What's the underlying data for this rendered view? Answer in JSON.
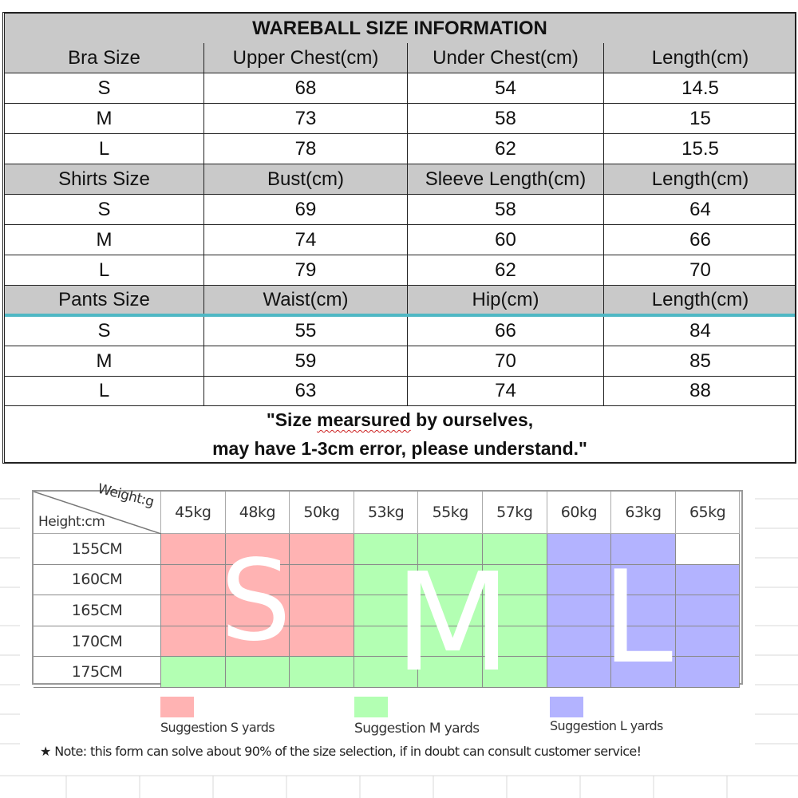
{
  "size_info": {
    "title": "WAREBALL SIZE INFORMATION",
    "sections": [
      {
        "name": "bra",
        "headers": [
          "Bra Size",
          "Upper Chest(cm)",
          "Under Chest(cm)",
          "Length(cm)"
        ],
        "rows": [
          [
            "S",
            "68",
            "54",
            "14.5"
          ],
          [
            "M",
            "73",
            "58",
            "15"
          ],
          [
            "L",
            "78",
            "62",
            "15.5"
          ]
        ]
      },
      {
        "name": "shirts",
        "headers": [
          "Shirts Size",
          "Bust(cm)",
          "Sleeve Length(cm)",
          "Length(cm)"
        ],
        "rows": [
          [
            "S",
            "69",
            "58",
            "64"
          ],
          [
            "M",
            "74",
            "60",
            "66"
          ],
          [
            "L",
            "79",
            "62",
            "70"
          ]
        ]
      },
      {
        "name": "pants",
        "headers": [
          "Pants Size",
          "Waist(cm)",
          "Hip(cm)",
          "Length(cm)"
        ],
        "rows": [
          [
            "S",
            "55",
            "66",
            "84"
          ],
          [
            "M",
            "59",
            "70",
            "85"
          ],
          [
            "L",
            "63",
            "74",
            "88"
          ]
        ]
      }
    ],
    "note_line1_pre": "\"Size ",
    "note_line1_misspelled": "mearsured",
    "note_line1_post": " by ourselves,",
    "note_line2": "may have 1-3cm error, please understand.\""
  },
  "weight_height_chart": {
    "corner_weight_label": "Weight:g",
    "corner_height_label": "Height:cm",
    "weights": [
      "45kg",
      "48kg",
      "50kg",
      "53kg",
      "55kg",
      "57kg",
      "60kg",
      "63kg",
      "65kg"
    ],
    "heights": [
      "155CM",
      "160CM",
      "165CM",
      "170CM",
      "175CM"
    ],
    "grid": [
      [
        "S",
        "S",
        "S",
        "M",
        "M",
        "M",
        "L",
        "L",
        ""
      ],
      [
        "S",
        "S",
        "S",
        "M",
        "M",
        "M",
        "L",
        "L",
        "L"
      ],
      [
        "S",
        "S",
        "S",
        "M",
        "M",
        "M",
        "L",
        "L",
        "L"
      ],
      [
        "S",
        "S",
        "S",
        "M",
        "M",
        "M",
        "L",
        "L",
        "L"
      ],
      [
        "M",
        "M",
        "M",
        "M",
        "M",
        "M",
        "L",
        "L",
        "L"
      ]
    ],
    "big_letters": {
      "S": "S",
      "M": "M",
      "L": "L"
    },
    "colors": {
      "S": "#ffb3b3",
      "M": "#b3ffb3",
      "L": "#b3b3ff",
      "empty": "#ffffff"
    },
    "legend": [
      {
        "key": "S",
        "label": "Suggestion S yards"
      },
      {
        "key": "M",
        "label": "Suggestion M yards"
      },
      {
        "key": "L",
        "label": "Suggestion L yards"
      }
    ],
    "footnote_star": "★",
    "footnote": "Note: this form can solve about 90% of the size selection, if in doubt can consult customer service!"
  }
}
